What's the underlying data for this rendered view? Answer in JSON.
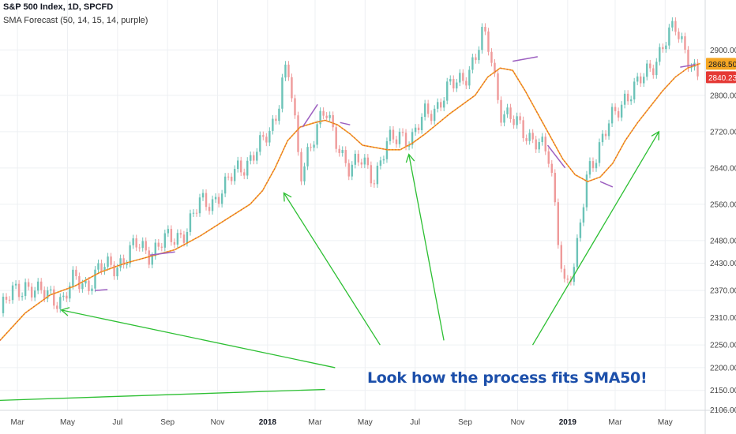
{
  "header": {
    "title": "S&P 500 Index, 1D, SPCFD",
    "indicator": "SMA Forecast (50, 14, 15, 14, purple)"
  },
  "annotation": "Look how the process fits SMA50!",
  "colors": {
    "up": "#6cc3b8",
    "down": "#ef9a9a",
    "sma": "#f5a623",
    "sma_red": "#d84343",
    "forecast": "#9c5fc0",
    "arrow": "#2cbf32",
    "grid": "#eef0f3",
    "label_orange": "#f5a623",
    "label_red": "#e53935"
  },
  "chart_data": {
    "type": "line",
    "title": "S&P 500 Index, 1D, SPCFD",
    "xlabel": "",
    "ylabel": "",
    "ylim": [
      2106,
      3010
    ],
    "x_range": [
      0,
      28.2
    ],
    "grid": true,
    "yticks": [
      2150,
      2200,
      2250,
      2310,
      2370,
      2430,
      2480,
      2560,
      2640,
      2720,
      2800,
      2900
    ],
    "ytick_labels": [
      "2150.00",
      "2200.00",
      "2250.00",
      "2310.00",
      "2370.00",
      "2430.00",
      "2480.00",
      "2560.00",
      "2640.00",
      "2720.00",
      "2800.00",
      "2900.00"
    ],
    "bottom_tick_label": "2106.00",
    "xticks": [
      {
        "x": 0.7,
        "label": "Mar",
        "bold": false
      },
      {
        "x": 2.7,
        "label": "May",
        "bold": false
      },
      {
        "x": 4.7,
        "label": "Jul",
        "bold": false
      },
      {
        "x": 6.7,
        "label": "Sep",
        "bold": false
      },
      {
        "x": 8.7,
        "label": "Nov",
        "bold": false
      },
      {
        "x": 10.7,
        "label": "2018",
        "bold": true
      },
      {
        "x": 12.6,
        "label": "Mar",
        "bold": false
      },
      {
        "x": 14.6,
        "label": "May",
        "bold": false
      },
      {
        "x": 16.6,
        "label": "Jul",
        "bold": false
      },
      {
        "x": 18.6,
        "label": "Sep",
        "bold": false
      },
      {
        "x": 20.7,
        "label": "Nov",
        "bold": false
      },
      {
        "x": 22.7,
        "label": "2019",
        "bold": true
      },
      {
        "x": 24.6,
        "label": "Mar",
        "bold": false
      },
      {
        "x": 26.6,
        "label": "May",
        "bold": false
      }
    ],
    "price_series": {
      "name": "S&P 500",
      "x": [
        0,
        0.5,
        1,
        1.5,
        2,
        2.5,
        3,
        3.5,
        4,
        4.5,
        5,
        5.5,
        6,
        6.5,
        7,
        7.5,
        8,
        8.5,
        9,
        9.5,
        10,
        10.5,
        11,
        11.3,
        11.5,
        11.7,
        12,
        12.3,
        12.6,
        13,
        13.5,
        14,
        14.5,
        15,
        15.5,
        16,
        16.5,
        17,
        17.5,
        18,
        18.5,
        19,
        19.3,
        19.6,
        20,
        20.5,
        21,
        21.5,
        22,
        22.3,
        22.6,
        23,
        23.5,
        24,
        24.5,
        25,
        25.5,
        26,
        26.3,
        26.6,
        27,
        27.3,
        27.6,
        27.9
      ],
      "values": [
        2320,
        2365,
        2385,
        2360,
        2365,
        2345,
        2395,
        2385,
        2415,
        2425,
        2440,
        2470,
        2455,
        2475,
        2485,
        2510,
        2560,
        2570,
        2595,
        2640,
        2660,
        2690,
        2750,
        2840,
        2860,
        2780,
        2620,
        2680,
        2720,
        2760,
        2700,
        2630,
        2660,
        2620,
        2690,
        2720,
        2700,
        2760,
        2780,
        2815,
        2840,
        2880,
        2930,
        2900,
        2770,
        2740,
        2720,
        2700,
        2650,
        2500,
        2380,
        2420,
        2640,
        2690,
        2750,
        2800,
        2820,
        2860,
        2890,
        2920,
        2945,
        2915,
        2880,
        2840
      ]
    },
    "sma50": {
      "name": "SMA50",
      "x": [
        0,
        1,
        2,
        3,
        4,
        5,
        6,
        7,
        8,
        9,
        10,
        10.5,
        11,
        11.5,
        12,
        12.6,
        13,
        13.5,
        14,
        14.5,
        15,
        15.5,
        16,
        16.5,
        17,
        18,
        19,
        19.5,
        20,
        20.5,
        21,
        21.5,
        22,
        22.5,
        23,
        23.5,
        24,
        24.5,
        25,
        25.5,
        26,
        26.5,
        27,
        27.5,
        28
      ],
      "values": [
        2260,
        2320,
        2360,
        2380,
        2410,
        2430,
        2445,
        2460,
        2490,
        2525,
        2560,
        2590,
        2640,
        2700,
        2730,
        2740,
        2745,
        2735,
        2715,
        2690,
        2685,
        2680,
        2680,
        2695,
        2715,
        2760,
        2800,
        2840,
        2860,
        2855,
        2810,
        2760,
        2710,
        2660,
        2625,
        2610,
        2620,
        2650,
        2700,
        2740,
        2775,
        2810,
        2840,
        2860,
        2870
      ]
    },
    "forecasts": [
      {
        "x": [
          3.8,
          4.3
        ],
        "values": [
          2370,
          2372
        ]
      },
      {
        "x": [
          6.0,
          7.0
        ],
        "values": [
          2448,
          2455
        ]
      },
      {
        "x": [
          12.1,
          12.7
        ],
        "values": [
          2730,
          2780
        ]
      },
      {
        "x": [
          13.6,
          14.0
        ],
        "values": [
          2740,
          2735
        ]
      },
      {
        "x": [
          20.5,
          21.5
        ],
        "values": [
          2875,
          2885
        ]
      },
      {
        "x": [
          21.9,
          22.6
        ],
        "values": [
          2690,
          2640
        ]
      },
      {
        "x": [
          24.0,
          24.5
        ],
        "values": [
          2610,
          2598
        ]
      },
      {
        "x": [
          27.2,
          27.8
        ],
        "values": [
          2862,
          2868
        ]
      }
    ],
    "arrows": [
      {
        "name": "arrow-may-2017",
        "from": [
          13.4,
          2200
        ],
        "to": [
          2.45,
          2327
        ],
        "head": true
      },
      {
        "name": "arrow-feb-2018",
        "from": [
          15.2,
          2250
        ],
        "to": [
          11.35,
          2585
        ],
        "head": true
      },
      {
        "name": "arrow-jun-2018",
        "from": [
          17.75,
          2260
        ],
        "to": [
          16.35,
          2670
        ],
        "head": true
      },
      {
        "name": "arrow-mar-2019",
        "from": [
          21.3,
          2250
        ],
        "to": [
          26.35,
          2720
        ],
        "head": true
      },
      {
        "name": "baseline-line",
        "from": [
          0,
          2128
        ],
        "to": [
          13.0,
          2152
        ],
        "head": false
      }
    ],
    "price_labels": [
      {
        "name": "label-sma-orange",
        "value": 2868.5,
        "text": "2868.50"
      },
      {
        "name": "label-last-red",
        "value": 2840.23,
        "text": "2840.23"
      }
    ]
  }
}
